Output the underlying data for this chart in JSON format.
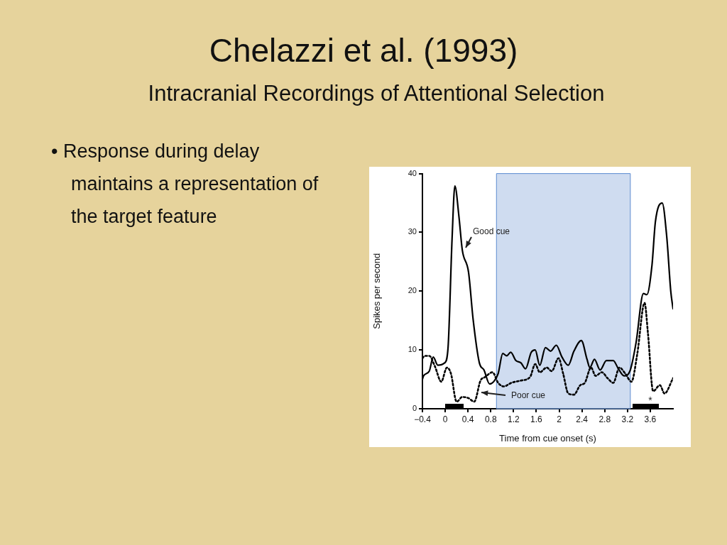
{
  "chart_data": {
    "type": "line",
    "title": "Chelazzi et al. (1993)",
    "subtitle": "Intracranial Recordings of Attentional Selection",
    "xlabel": "Time from cue onset (s)",
    "ylabel": "Spikes per second",
    "annotations": [
      "• Response during delay maintains a representation of the target feature",
      "*"
    ],
    "xlim": [
      -0.4,
      4.0
    ],
    "xticks": [
      {
        "value": -0.4,
        "label": "−0.4"
      },
      0,
      0.4,
      0.8,
      1.2,
      1.6,
      2,
      2.4,
      2.8,
      3.2,
      3.6
    ],
    "ylim": [
      0,
      40
    ],
    "yticks": [
      0,
      10,
      20,
      30,
      40
    ],
    "grid": false,
    "legend": false,
    "marker": "none",
    "bands": [
      {
        "axis": "x",
        "from": 0.9,
        "to": 3.25,
        "color": "#a7bfe3"
      }
    ],
    "series": [
      {
        "name": "Good cue",
        "color": "#000000",
        "line_style": "solid",
        "x": [
          -0.4,
          -0.38,
          -0.28,
          -0.21,
          -0.13,
          -0.01,
          0.05,
          0.12,
          0.17,
          0.24,
          0.3,
          0.41,
          0.49,
          0.6,
          0.68,
          0.78,
          0.85,
          0.93,
          1.01,
          1.08,
          1.15,
          1.24,
          1.33,
          1.41,
          1.51,
          1.58,
          1.66,
          1.76,
          1.85,
          1.95,
          2.05,
          2.16,
          2.26,
          2.39,
          2.49,
          2.54,
          2.62,
          2.72,
          2.83,
          2.95,
          3.04,
          3.14,
          3.25,
          3.35,
          3.48,
          3.54,
          3.63,
          3.69,
          3.81,
          3.89,
          3.96,
          4.0
        ],
        "values": [
          5,
          5.6,
          6.4,
          8.8,
          7.4,
          7.8,
          10.4,
          28.8,
          37.9,
          32.8,
          27,
          23.2,
          15.2,
          7.8,
          6.6,
          4.2,
          4.6,
          6,
          9.4,
          9,
          9.6,
          8.2,
          7.8,
          6.8,
          9.6,
          10,
          7.4,
          10.4,
          9.8,
          10.8,
          8.8,
          7.4,
          9.8,
          11.6,
          8.4,
          7,
          8.4,
          6.6,
          8.2,
          8.2,
          6.8,
          5.6,
          6.6,
          11.2,
          19.6,
          19.4,
          24.4,
          31.8,
          35,
          29.2,
          20,
          17
        ]
      },
      {
        "name": "Poor cue",
        "color": "#000000",
        "line_style": "dotted",
        "x": [
          -0.4,
          -0.36,
          -0.28,
          -0.18,
          -0.07,
          0.03,
          0.1,
          0.2,
          0.3,
          0.41,
          0.51,
          0.62,
          0.7,
          0.83,
          0.93,
          1.03,
          1.16,
          1.33,
          1.49,
          1.58,
          1.66,
          1.78,
          1.87,
          1.99,
          2.07,
          2.16,
          2.26,
          2.37,
          2.45,
          2.56,
          2.64,
          2.75,
          2.85,
          2.95,
          3.06,
          3.16,
          3.27,
          3.37,
          3.5,
          3.56,
          3.65,
          3.77,
          3.85,
          4.0
        ],
        "values": [
          8.6,
          9,
          9,
          7.2,
          4.6,
          7,
          6,
          1.2,
          2,
          1.8,
          1.2,
          4.8,
          5.4,
          6.2,
          4.4,
          3.8,
          4.4,
          4.8,
          5.4,
          7.6,
          6.2,
          7,
          6.4,
          8.6,
          6,
          2.6,
          2.4,
          4,
          4.4,
          7,
          5.6,
          6.2,
          5.2,
          4.4,
          7,
          6,
          4.6,
          9.2,
          18,
          12.8,
          3,
          4,
          2.6,
          5.2
        ]
      }
    ]
  }
}
